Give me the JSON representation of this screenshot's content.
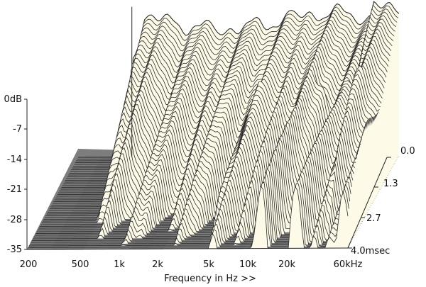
{
  "chart_data": {
    "type": "waterfall-3d",
    "xlabel": "Frequency in Hz >>",
    "x_ticks": [
      "200",
      "500",
      "1k",
      "2k",
      "5k",
      "10k",
      "20k",
      "60kHz"
    ],
    "x_tick_values": [
      200,
      500,
      1000,
      2000,
      5000,
      10000,
      20000,
      60000
    ],
    "xlim": [
      200,
      60000
    ],
    "x_scale": "log",
    "ylabel": "",
    "y_ticks": [
      "0dB",
      "-7",
      "-14",
      "-21",
      "-28",
      "-35"
    ],
    "y_tick_values": [
      0,
      -7,
      -14,
      -21,
      -28,
      -35
    ],
    "ylim": [
      -35,
      0
    ],
    "z_ticks": [
      "0.0",
      "1.3",
      "2.7",
      "4.0msec"
    ],
    "z_tick_values": [
      0.0,
      1.3,
      2.7,
      4.0
    ],
    "zlim": [
      0,
      4.0
    ],
    "slices": 52,
    "colors": {
      "surface": "#fdfbe8",
      "line": "#2a2a2a",
      "floor": "#7d7d7d",
      "floor_line": "#4a4a4a"
    }
  }
}
